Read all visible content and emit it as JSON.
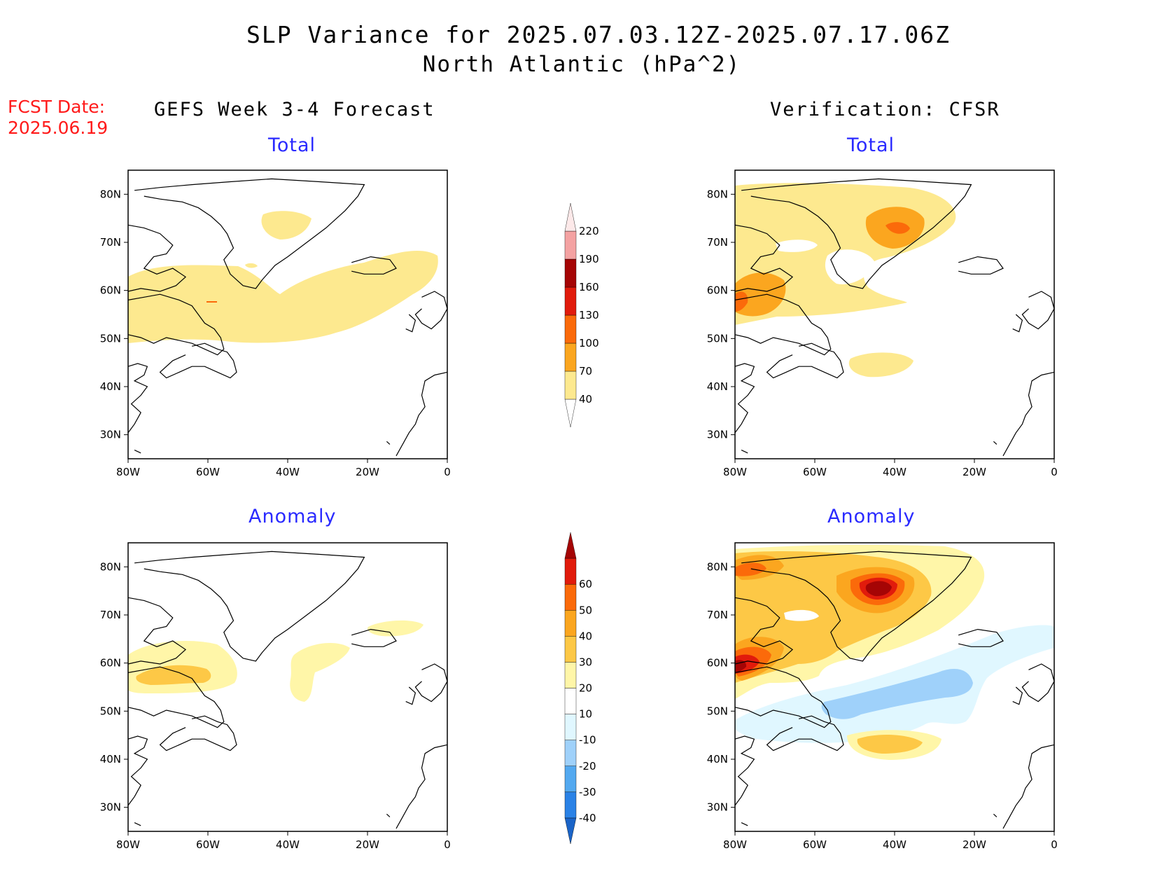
{
  "figure": {
    "title_line1": "SLP Variance for 2025.07.03.12Z-2025.07.17.06Z",
    "title_line2": "North Atlantic (hPa^2)",
    "fcst_label": "FCST Date:",
    "fcst_date": "2025.06.19",
    "left_column_title": "GEFS Week 3-4 Forecast",
    "right_column_title": "Verification: CFSR"
  },
  "panels": [
    {
      "id": "gefs-total",
      "subtitle": "Total"
    },
    {
      "id": "cfsr-total",
      "subtitle": "Total"
    },
    {
      "id": "gefs-anomaly",
      "subtitle": "Anomaly"
    },
    {
      "id": "cfsr-anomaly",
      "subtitle": "Anomaly"
    }
  ],
  "axes": {
    "lat_labels": [
      "80N",
      "70N",
      "60N",
      "50N",
      "40N",
      "30N"
    ],
    "lat_values": [
      80,
      70,
      60,
      50,
      40,
      30
    ],
    "lon_labels": [
      "80W",
      "60W",
      "40W",
      "20W",
      "0"
    ],
    "lon_values": [
      -80,
      -60,
      -40,
      -20,
      0
    ],
    "lat_range": [
      25,
      85
    ],
    "lon_range": [
      -80,
      0
    ]
  },
  "colorbars": {
    "total": {
      "levels": [
        "40",
        "70",
        "100",
        "130",
        "160",
        "190",
        "220"
      ],
      "colors": [
        "#fde98f",
        "#fba61f",
        "#fb6a0a",
        "#e11b0c",
        "#a50505",
        "#f4a2a2",
        "#fde9e9"
      ]
    },
    "anomaly": {
      "levels": [
        "-40",
        "-30",
        "-20",
        "-10",
        "10",
        "20",
        "30",
        "40",
        "50",
        "60"
      ],
      "colors": [
        "#1a64c8",
        "#2a82e6",
        "#53a9f0",
        "#9fd1fa",
        "#e0f7ff",
        "#ffffff",
        "#fff6a8",
        "#fdc846",
        "#fba61f",
        "#fb6a0a",
        "#e11b0c",
        "#a50505"
      ]
    }
  },
  "palette": {
    "c40": "#fde98f",
    "c70": "#fba61f",
    "c100": "#fb6a0a",
    "c130": "#e11b0c",
    "c160": "#a50505",
    "a10": "#fff6a8",
    "a20": "#fdc846",
    "a30": "#fba61f",
    "a40": "#fb6a0a",
    "a50": "#e11b0c",
    "a60": "#a50505",
    "n10": "#e0f7ff",
    "n20": "#9fd1fa"
  }
}
